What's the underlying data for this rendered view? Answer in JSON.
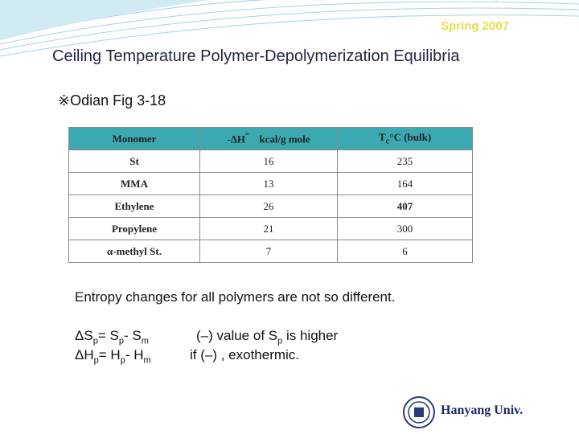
{
  "header": {
    "badge": "Spring 2007"
  },
  "title": "Ceiling Temperature Polymer-Depolymerization Equilibria",
  "subtitle": "※Odian Fig 3-18",
  "table": {
    "header": {
      "monomer": "Monomer",
      "dh": [
        "-ΔH",
        "°",
        "kcal/g mole"
      ],
      "tc": [
        "T",
        "c",
        "°C (bulk)"
      ]
    },
    "rows": [
      [
        "St",
        16,
        235
      ],
      [
        "MMA",
        13,
        164
      ],
      [
        "Ethylene",
        26,
        407
      ],
      [
        "Propylene",
        21,
        300
      ],
      [
        "α-methyl St.",
        7,
        6
      ]
    ]
  },
  "note": "Entropy changes for all polymers are not so different.",
  "equations": {
    "entropy": [
      "ΔS",
      "p",
      "= S",
      "p",
      "- S",
      "m"
    ],
    "enthalpy": [
      "ΔH",
      "p",
      "= H",
      "p",
      "- H",
      "m"
    ],
    "comment1": [
      "(–) value of S",
      "p",
      " is higher"
    ],
    "comment2": "if (–) , exothermic."
  },
  "footer": "Hanyang Univ."
}
